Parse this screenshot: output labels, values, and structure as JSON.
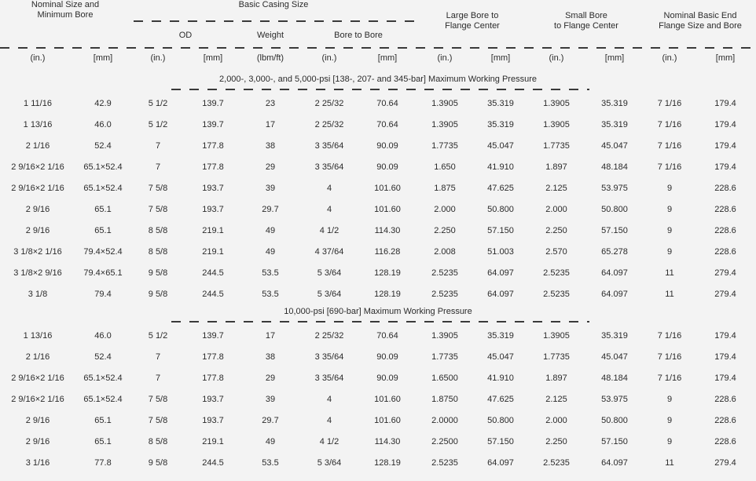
{
  "table": {
    "groups": {
      "nominal": {
        "line1": "Nominal Size and",
        "line2": "Minimum Bore"
      },
      "basic_casing": {
        "label": "Basic Casing Size",
        "subcolumns": {
          "od": "OD",
          "weight": "Weight",
          "bore_to_bore": "Bore to Bore"
        }
      },
      "large_bore": {
        "line1": "Large Bore to",
        "line2": "Flange Center"
      },
      "small_bore": {
        "line1": "Small Bore",
        "line2": "to Flange Center"
      },
      "end_flange": {
        "line1": "Nominal Basic End",
        "line2": "Flange Size and Bore"
      }
    },
    "units": [
      "(in.)",
      "[mm]",
      "(in.)",
      "[mm]",
      "(lbm/ft)",
      "(in.)",
      "[mm]",
      "(in.)",
      "[mm]",
      "(in.)",
      "[mm]",
      "(in.)",
      "[mm]"
    ],
    "sections": [
      {
        "title": "2,000-, 3,000-, and 5,000-psi [138-, 207- and 345-bar] Maximum Working Pressure",
        "rows": [
          [
            "1 11/16",
            "42.9",
            "5 1/2",
            "139.7",
            "23",
            "2 25/32",
            "70.64",
            "1.3905",
            "35.319",
            "1.3905",
            "35.319",
            "7 1/16",
            "179.4"
          ],
          [
            "1 13/16",
            "46.0",
            "5 1/2",
            "139.7",
            "17",
            "2 25/32",
            "70.64",
            "1.3905",
            "35.319",
            "1.3905",
            "35.319",
            "7 1/16",
            "179.4"
          ],
          [
            "2 1/16",
            "52.4",
            "7",
            "177.8",
            "38",
            "3 35/64",
            "90.09",
            "1.7735",
            "45.047",
            "1.7735",
            "45.047",
            "7 1/16",
            "179.4"
          ],
          [
            "2 9/16×2 1/16",
            "65.1×52.4",
            "7",
            "177.8",
            "29",
            "3 35/64",
            "90.09",
            "1.650",
            "41.910",
            "1.897",
            "48.184",
            "7 1/16",
            "179.4"
          ],
          [
            "2 9/16×2 1/16",
            "65.1×52.4",
            "7 5/8",
            "193.7",
            "39",
            "4",
            "101.60",
            "1.875",
            "47.625",
            "2.125",
            "53.975",
            "9",
            "228.6"
          ],
          [
            "2 9/16",
            "65.1",
            "7 5/8",
            "193.7",
            "29.7",
            "4",
            "101.60",
            "2.000",
            "50.800",
            "2.000",
            "50.800",
            "9",
            "228.6"
          ],
          [
            "2 9/16",
            "65.1",
            "8 5/8",
            "219.1",
            "49",
            "4 1/2",
            "114.30",
            "2.250",
            "57.150",
            "2.250",
            "57.150",
            "9",
            "228.6"
          ],
          [
            "3 1/8×2 1/16",
            "79.4×52.4",
            "8 5/8",
            "219.1",
            "49",
            "4 37/64",
            "116.28",
            "2.008",
            "51.003",
            "2.570",
            "65.278",
            "9",
            "228.6"
          ],
          [
            "3 1/8×2 9/16",
            "79.4×65.1",
            "9 5/8",
            "244.5",
            "53.5",
            "5 3/64",
            "128.19",
            "2.5235",
            "64.097",
            "2.5235",
            "64.097",
            "11",
            "279.4"
          ],
          [
            "3 1/8",
            "79.4",
            "9 5/8",
            "244.5",
            "53.5",
            "5 3/64",
            "128.19",
            "2.5235",
            "64.097",
            "2.5235",
            "64.097",
            "11",
            "279.4"
          ]
        ]
      },
      {
        "title": "10,000-psi [690-bar] Maximum Working Pressure",
        "rows": [
          [
            "1 13/16",
            "46.0",
            "5 1/2",
            "139.7",
            "17",
            "2 25/32",
            "70.64",
            "1.3905",
            "35.319",
            "1.3905",
            "35.319",
            "7 1/16",
            "179.4"
          ],
          [
            "2 1/16",
            "52.4",
            "7",
            "177.8",
            "38",
            "3 35/64",
            "90.09",
            "1.7735",
            "45.047",
            "1.7735",
            "45.047",
            "7 1/16",
            "179.4"
          ],
          [
            "2 9/16×2 1/16",
            "65.1×52.4",
            "7",
            "177.8",
            "29",
            "3 35/64",
            "90.09",
            "1.6500",
            "41.910",
            "1.897",
            "48.184",
            "7 1/16",
            "179.4"
          ],
          [
            "2 9/16×2 1/16",
            "65.1×52.4",
            "7 5/8",
            "193.7",
            "39",
            "4",
            "101.60",
            "1.8750",
            "47.625",
            "2.125",
            "53.975",
            "9",
            "228.6"
          ],
          [
            "2 9/16",
            "65.1",
            "7 5/8",
            "193.7",
            "29.7",
            "4",
            "101.60",
            "2.0000",
            "50.800",
            "2.000",
            "50.800",
            "9",
            "228.6"
          ],
          [
            "2 9/16",
            "65.1",
            "8 5/8",
            "219.1",
            "49",
            "4 1/2",
            "114.30",
            "2.2500",
            "57.150",
            "2.250",
            "57.150",
            "9",
            "228.6"
          ],
          [
            "3 1/16",
            "77.8",
            "9 5/8",
            "244.5",
            "53.5",
            "5 3/64",
            "128.19",
            "2.5235",
            "64.097",
            "2.5235",
            "64.097",
            "11",
            "279.4"
          ]
        ]
      }
    ]
  },
  "colors": {
    "background": "#f3f3f3",
    "text": "#2b2b2b",
    "rule": "#3a3a3a"
  }
}
